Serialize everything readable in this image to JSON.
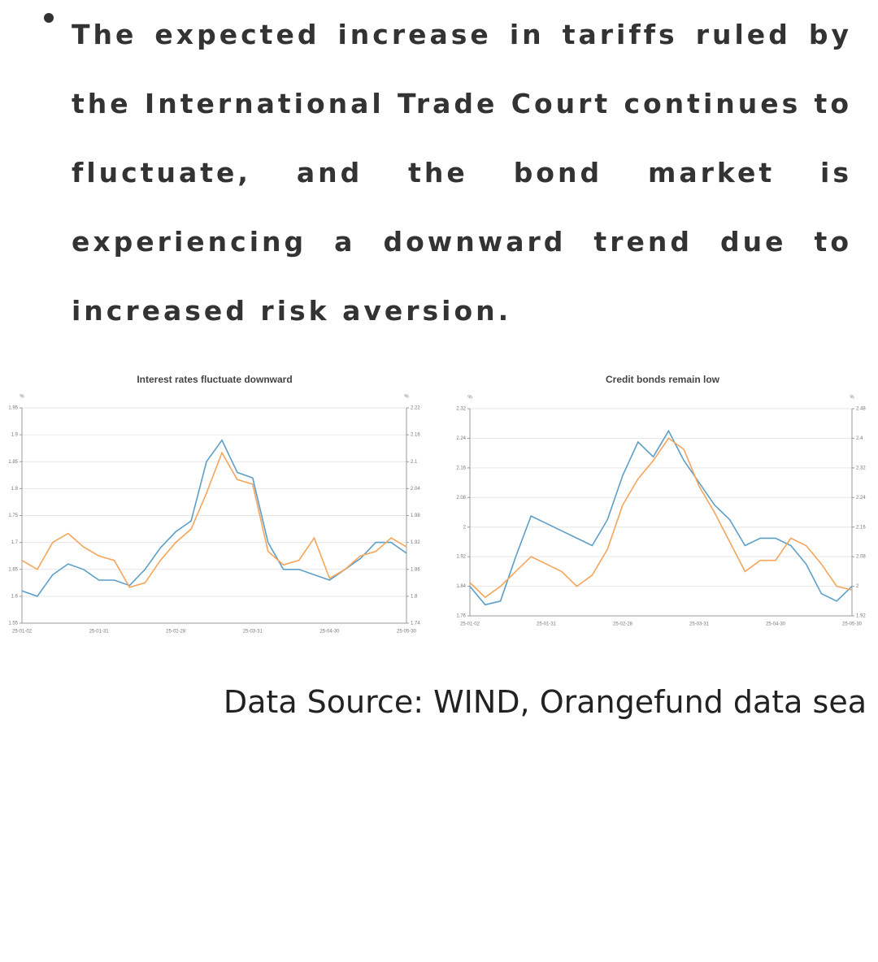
{
  "bullet_text": "The expected increase in tariffs ruled by the International Trade Court continues to fluctuate, and the bond market is experiencing a downward trend due to increased risk aversion.",
  "chart_data": [
    {
      "type": "line",
      "title": "Interest rates fluctuate downward",
      "ylabel": "%",
      "y2label": "%",
      "grid": true,
      "categories": [
        "25-01-02",
        null,
        null,
        null,
        null,
        "25-01-31",
        null,
        null,
        null,
        null,
        "25-02-28",
        null,
        null,
        null,
        null,
        "25-03-31",
        null,
        null,
        null,
        null,
        "25-04-30",
        null,
        null,
        null,
        null,
        "25-05-30"
      ],
      "ylim": [
        1.55,
        1.95
      ],
      "yticks": [
        1.55,
        1.6,
        1.65,
        1.7,
        1.75,
        1.8,
        1.85,
        1.9,
        1.95
      ],
      "y2lim": [
        1.74,
        2.22
      ],
      "y2ticks": [
        1.74,
        1.8,
        1.86,
        1.92,
        1.98,
        2.04,
        2.1,
        2.16,
        2.22
      ],
      "series": [
        {
          "color": "#5b9fc8",
          "values": [
            1.61,
            1.6,
            1.64,
            1.66,
            1.65,
            1.63,
            1.63,
            1.62,
            1.65,
            1.69,
            1.72,
            1.74,
            1.85,
            1.89,
            1.83,
            1.82,
            1.7,
            1.65,
            1.65,
            1.64,
            1.63,
            1.65,
            1.67,
            1.7,
            1.7,
            1.68
          ]
        },
        {
          "color": "#f5a55a",
          "axis": "y2",
          "values": [
            1.88,
            1.86,
            1.92,
            1.94,
            1.91,
            1.89,
            1.88,
            1.82,
            1.83,
            1.88,
            1.92,
            1.95,
            2.03,
            2.12,
            2.06,
            2.05,
            1.9,
            1.87,
            1.88,
            1.93,
            1.84,
            1.86,
            1.89,
            1.9,
            1.93,
            1.91
          ]
        }
      ]
    },
    {
      "type": "line",
      "title": "Credit bonds remain low",
      "ylabel": "%",
      "y2label": "%",
      "grid": true,
      "categories": [
        "25-01-02",
        null,
        null,
        null,
        null,
        "25-01-31",
        null,
        null,
        null,
        null,
        "25-02-28",
        null,
        null,
        null,
        null,
        "25-03-31",
        null,
        null,
        null,
        null,
        "25-04-30",
        null,
        null,
        null,
        null,
        "25-05-30"
      ],
      "ylim": [
        1.76,
        2.32
      ],
      "yticks": [
        1.76,
        1.84,
        1.92,
        2,
        2.08,
        2.16,
        2.24,
        2.32
      ],
      "y2lim": [
        1.92,
        2.48
      ],
      "y2ticks": [
        1.92,
        2,
        2.08,
        2.16,
        2.24,
        2.32,
        2.4,
        2.48
      ],
      "series": [
        {
          "color": "#5b9fc8",
          "values": [
            1.84,
            1.79,
            1.8,
            1.92,
            2.03,
            2.01,
            1.99,
            1.97,
            1.95,
            2.02,
            2.14,
            2.23,
            2.19,
            2.26,
            2.18,
            2.12,
            2.06,
            2.02,
            1.95,
            1.97,
            1.97,
            1.95,
            1.9,
            1.82,
            1.8,
            1.84
          ]
        },
        {
          "color": "#f5a55a",
          "axis": "y2",
          "values": [
            2.01,
            1.97,
            2,
            2.04,
            2.08,
            2.06,
            2.04,
            2,
            2.03,
            2.1,
            2.22,
            2.29,
            2.34,
            2.4,
            2.37,
            2.27,
            2.2,
            2.12,
            2.04,
            2.07,
            2.07,
            2.13,
            2.11,
            2.06,
            2,
            1.99
          ]
        }
      ]
    }
  ],
  "source_text": "Data Source: WIND, Orangefund data sea"
}
